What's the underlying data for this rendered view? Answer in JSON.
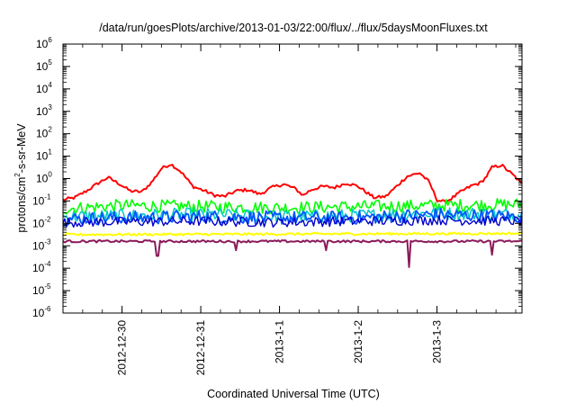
{
  "chart_data": {
    "type": "line",
    "title": "/data/run/goesPlots/archive/2013-01-03/22:00/flux/../flux/5daysMoonFluxes.txt",
    "xlabel": "Coordinated Universal Time (UTC)",
    "ylabel_parts": {
      "base": "protons/cm",
      "sup": "2",
      "rest": "-s-sr-MeV"
    },
    "y_scale": "log",
    "ylim_exp": [
      -6,
      6
    ],
    "y_ticks": [
      {
        "base": "10",
        "exp": "-6"
      },
      {
        "base": "10",
        "exp": "-5"
      },
      {
        "base": "10",
        "exp": "-4"
      },
      {
        "base": "10",
        "exp": "-3"
      },
      {
        "base": "10",
        "exp": "-2"
      },
      {
        "base": "10",
        "exp": "-1"
      },
      {
        "base": "10",
        "exp": "0"
      },
      {
        "base": "10",
        "exp": "1"
      },
      {
        "base": "10",
        "exp": "2"
      },
      {
        "base": "10",
        "exp": "3"
      },
      {
        "base": "10",
        "exp": "4"
      },
      {
        "base": "10",
        "exp": "5"
      },
      {
        "base": "10",
        "exp": "6"
      }
    ],
    "x_range_days": [
      -0.75,
      4.0
    ],
    "x_ticks": [
      {
        "label": "2012-12-30",
        "day": 0
      },
      {
        "label": "2012-12-31",
        "day": 1
      },
      {
        "label": "2013-1-1",
        "day": 2
      },
      {
        "label": "2013-1-2",
        "day": 3
      },
      {
        "label": "2013-1-3",
        "day": 4
      }
    ],
    "grid": false,
    "legend": "none",
    "series": [
      {
        "color": "#ff0000",
        "stroke": 2,
        "noise": 0.07,
        "points": [
          [
            -0.75,
            -0.95
          ],
          [
            -0.6,
            -0.85
          ],
          [
            -0.45,
            -0.55
          ],
          [
            -0.3,
            -0.2
          ],
          [
            -0.18,
            0.05
          ],
          [
            -0.05,
            -0.2
          ],
          [
            0.1,
            -0.55
          ],
          [
            0.25,
            -0.6
          ],
          [
            0.38,
            -0.15
          ],
          [
            0.5,
            0.45
          ],
          [
            0.62,
            0.65
          ],
          [
            0.75,
            0.3
          ],
          [
            0.9,
            -0.35
          ],
          [
            1.05,
            -0.55
          ],
          [
            1.18,
            -0.75
          ],
          [
            1.3,
            -0.8
          ],
          [
            1.45,
            -0.55
          ],
          [
            1.6,
            -0.5
          ],
          [
            1.75,
            -0.7
          ],
          [
            1.9,
            -0.4
          ],
          [
            2.05,
            -0.25
          ],
          [
            2.2,
            -0.45
          ],
          [
            2.3,
            -0.75
          ],
          [
            2.4,
            -0.5
          ],
          [
            2.55,
            -0.35
          ],
          [
            2.7,
            -0.4
          ],
          [
            2.85,
            -0.2
          ],
          [
            3.0,
            -0.35
          ],
          [
            3.2,
            -0.85
          ],
          [
            3.35,
            -0.8
          ],
          [
            3.5,
            -0.3
          ],
          [
            3.62,
            0.1
          ],
          [
            3.78,
            0.25
          ],
          [
            3.9,
            -0.15
          ],
          [
            4.0,
            -0.95
          ],
          [
            4.1,
            -1.05
          ],
          [
            4.2,
            -0.85
          ],
          [
            4.32,
            -0.55
          ],
          [
            4.45,
            -0.3
          ],
          [
            4.55,
            -0.2
          ],
          [
            4.62,
            0.05
          ],
          [
            4.7,
            0.5
          ],
          [
            4.82,
            0.6
          ],
          [
            4.92,
            0.3
          ],
          [
            5.0,
            0.05
          ],
          [
            5.08,
            -0.25
          ]
        ]
      },
      {
        "color": "#00ff00",
        "stroke": 1.6,
        "noise": 0.28,
        "points": [
          [
            -0.75,
            -1.35
          ],
          [
            0.0,
            -1.2
          ],
          [
            1.0,
            -1.25
          ],
          [
            2.0,
            -1.3
          ],
          [
            3.0,
            -1.25
          ],
          [
            4.0,
            -1.2
          ],
          [
            5.08,
            -1.15
          ]
        ]
      },
      {
        "color": "#00c8c8",
        "stroke": 1.5,
        "noise": 0.3,
        "points": [
          [
            -0.75,
            -1.7
          ],
          [
            1.0,
            -1.6
          ],
          [
            2.0,
            -1.7
          ],
          [
            3.0,
            -1.65
          ],
          [
            4.0,
            -1.55
          ],
          [
            5.08,
            -1.6
          ]
        ]
      },
      {
        "color": "#0055ff",
        "stroke": 1.8,
        "noise": 0.3,
        "points": [
          [
            -0.75,
            -1.8
          ],
          [
            1.0,
            -1.7
          ],
          [
            2.0,
            -1.75
          ],
          [
            3.0,
            -1.75
          ],
          [
            4.0,
            -1.6
          ],
          [
            5.08,
            -1.7
          ]
        ]
      },
      {
        "color": "#0000cc",
        "stroke": 1.4,
        "noise": 0.22,
        "points": [
          [
            -0.75,
            -1.95
          ],
          [
            1.0,
            -1.9
          ],
          [
            2.0,
            -1.95
          ],
          [
            3.0,
            -1.9
          ],
          [
            4.0,
            -1.85
          ],
          [
            5.08,
            -1.9
          ]
        ]
      },
      {
        "color": "#ffff00",
        "stroke": 2,
        "noise": 0.05,
        "points": [
          [
            -0.75,
            -2.5
          ],
          [
            5.08,
            -2.45
          ]
        ]
      },
      {
        "color": "#8b1a5a",
        "stroke": 2,
        "noise": 0.05,
        "points": [
          [
            -0.75,
            -2.8
          ],
          [
            5.08,
            -2.8
          ]
        ],
        "dips": [
          [
            0.45,
            -3.45
          ],
          [
            1.45,
            -3.2
          ],
          [
            2.6,
            -3.2
          ],
          [
            3.65,
            -3.95
          ],
          [
            4.7,
            -3.4
          ]
        ]
      }
    ]
  }
}
